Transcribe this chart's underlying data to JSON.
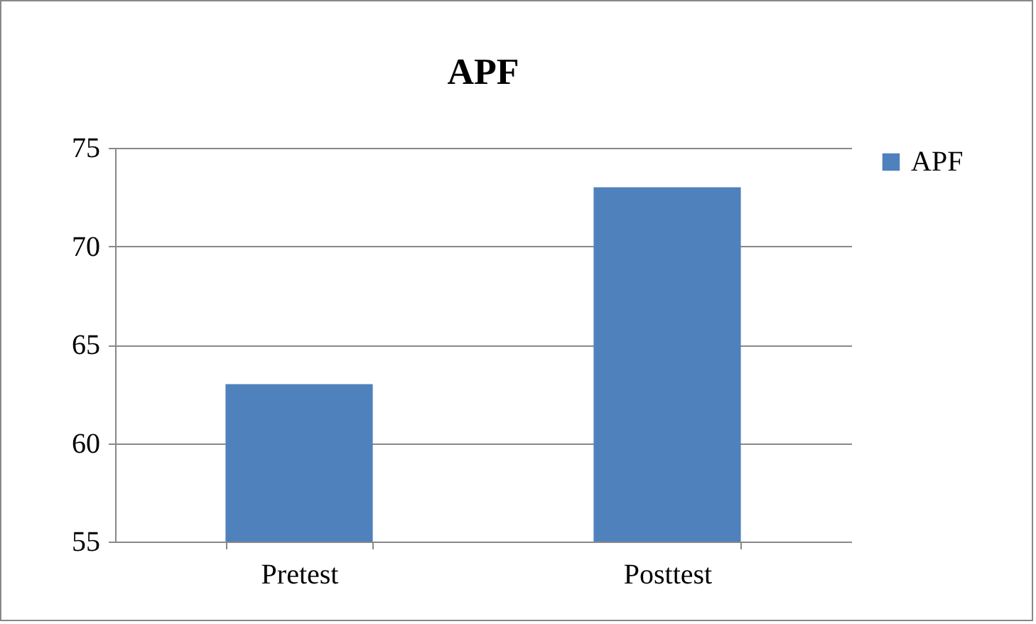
{
  "chart_data": {
    "type": "bar",
    "title": "APF",
    "categories": [
      "Pretest",
      "Posttest"
    ],
    "series": [
      {
        "name": "APF",
        "color": "#4f81bd",
        "values": [
          63,
          73
        ]
      }
    ],
    "ylim": [
      55,
      75
    ],
    "yticks": [
      55,
      60,
      65,
      70,
      75
    ],
    "grid": "y",
    "legend": "right"
  }
}
